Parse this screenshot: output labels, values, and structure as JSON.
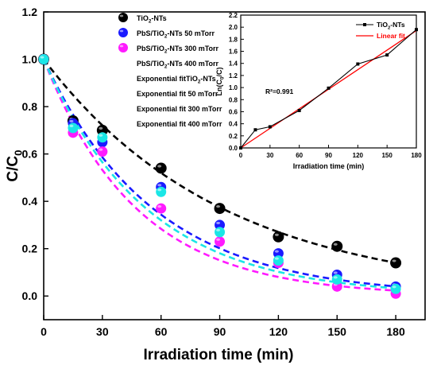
{
  "chart_data": [
    {
      "type": "scatter",
      "xlabel": "Irradiation time (min)",
      "ylabel": "C/C",
      "ylabel_sub": "0",
      "xlim": [
        0,
        195
      ],
      "ylim": [
        -0.1,
        1.2
      ],
      "xticks": [
        0,
        30,
        60,
        90,
        120,
        150,
        180
      ],
      "yticks": [
        0.0,
        0.2,
        0.4,
        0.6,
        0.8,
        1.0,
        1.2
      ],
      "x": [
        0,
        15,
        30,
        60,
        90,
        120,
        150,
        180
      ],
      "series": [
        {
          "name": "TiO2-NTs",
          "name_parts": [
            "TiO",
            "2",
            "-NTs"
          ],
          "color": "#000000",
          "values": [
            1.0,
            0.74,
            0.7,
            0.54,
            0.37,
            0.25,
            0.21,
            0.14
          ]
        },
        {
          "name": "PbS/TiO2-NTs 50 mTorr",
          "name_parts": [
            "PbS/TiO",
            "2",
            "-NTs 50 mTorr"
          ],
          "color": "#1a1aff",
          "values": [
            1.0,
            0.73,
            0.65,
            0.46,
            0.3,
            0.18,
            0.09,
            0.04
          ]
        },
        {
          "name": "PbS/TiO2-NTs 300 mTorr",
          "name_parts": [
            "PbS/TiO",
            "2",
            "-NTs 300 mTorr"
          ],
          "color": "#ff1aff",
          "values": [
            1.0,
            0.69,
            0.61,
            0.37,
            0.23,
            0.14,
            0.04,
            0.01
          ]
        },
        {
          "name": "PbS/TiO2-NTs 400 mTorr",
          "name_parts": [
            "PbS/TiO",
            "2",
            "-NTs 400 mTorr"
          ],
          "color": "#1ae6e6",
          "values": [
            1.0,
            0.71,
            0.67,
            0.44,
            0.27,
            0.15,
            0.07,
            0.03
          ]
        }
      ],
      "fits": [
        {
          "name": "Exponential fitTiO2-NTs",
          "name_parts": [
            "Exponential fitTiO",
            "2",
            "-NTs"
          ],
          "color": "#000000",
          "k": 0.0109
        },
        {
          "name": "Exponential fit 50 mTorr",
          "color": "#1a1aff",
          "k": 0.0178
        },
        {
          "name": "Exponential fit 300 mTorr",
          "color": "#ff1aff",
          "k": 0.021
        },
        {
          "name": "Exponential fit 400 mTorr",
          "color": "#1ae6e6",
          "k": 0.019
        }
      ],
      "legend": "top-left"
    },
    {
      "type": "line",
      "xlabel": "Irradiation time (min)",
      "ylabel": "Ln(C",
      "ylabel_sub": "0",
      "ylabel_tail": "/C)",
      "xlim": [
        0,
        180
      ],
      "ylim": [
        0,
        2.2
      ],
      "xticks": [
        0,
        30,
        60,
        90,
        120,
        150,
        180
      ],
      "yticks": [
        0.0,
        0.2,
        0.4,
        0.6,
        0.8,
        1.0,
        1.2,
        1.4,
        1.6,
        1.8,
        2.0,
        2.2
      ],
      "x": [
        0,
        15,
        30,
        60,
        90,
        120,
        150,
        180
      ],
      "series": [
        {
          "name": "TiO2-NTs",
          "name_parts": [
            "TiO",
            "2",
            "-NTs"
          ],
          "color": "#000000",
          "values": [
            0.0,
            0.3,
            0.35,
            0.62,
            0.99,
            1.39,
            1.54,
            1.96
          ]
        }
      ],
      "fit": {
        "name": "Linear fit",
        "color": "#ff0000",
        "slope": 0.0108,
        "intercept": 0.0
      },
      "annotation": "R²=0.991",
      "legend": "top-right"
    }
  ]
}
